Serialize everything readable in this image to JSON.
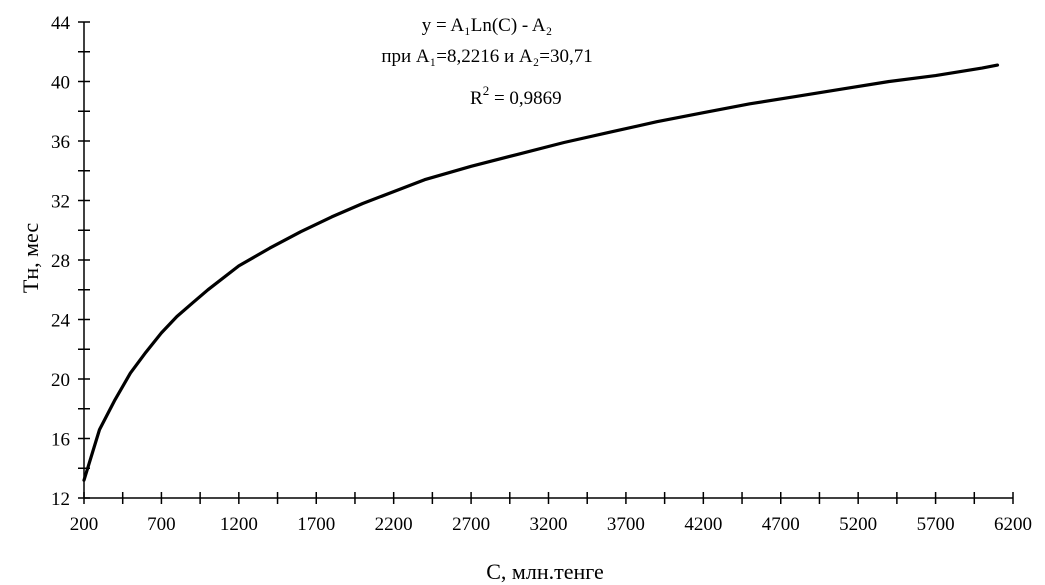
{
  "chart_data": {
    "type": "line",
    "title": "",
    "xlabel": "С, млн.тенге",
    "ylabel": "Тн, мес",
    "xlim": [
      200,
      6200
    ],
    "ylim": [
      12,
      44
    ],
    "x_ticks": [
      200,
      700,
      1200,
      1700,
      2200,
      2700,
      3200,
      3700,
      4200,
      4700,
      5200,
      5700,
      6200
    ],
    "y_ticks": [
      12,
      16,
      20,
      24,
      28,
      32,
      36,
      40,
      44
    ],
    "grid": false,
    "legend": "none",
    "annotations": {
      "formula": "y = A₁Ln(C) - A₂",
      "params": "при A₁=8,2216 и A₂=30,71",
      "r2_label": "R",
      "r2_sup": "2",
      "r2_value": " = 0,9869"
    },
    "model": {
      "A1": 8.2216,
      "A2": 30.71
    },
    "series": [
      {
        "x": [
          200,
          300,
          400,
          500,
          600,
          700,
          800,
          900,
          1000,
          1200,
          1400,
          1600,
          1800,
          2000,
          2200,
          2400,
          2700,
          3000,
          3300,
          3600,
          3900,
          4200,
          4500,
          4800,
          5100,
          5400,
          5700,
          6000,
          6100
        ],
        "values": [
          13.2,
          16.6,
          18.6,
          20.4,
          21.8,
          23.1,
          24.2,
          25.1,
          26.0,
          27.6,
          28.8,
          29.9,
          30.9,
          31.8,
          32.6,
          33.4,
          34.3,
          35.1,
          35.9,
          36.6,
          37.3,
          37.9,
          38.5,
          39.0,
          39.5,
          40.0,
          40.4,
          40.9,
          41.1
        ],
        "color": "#000000"
      }
    ]
  }
}
